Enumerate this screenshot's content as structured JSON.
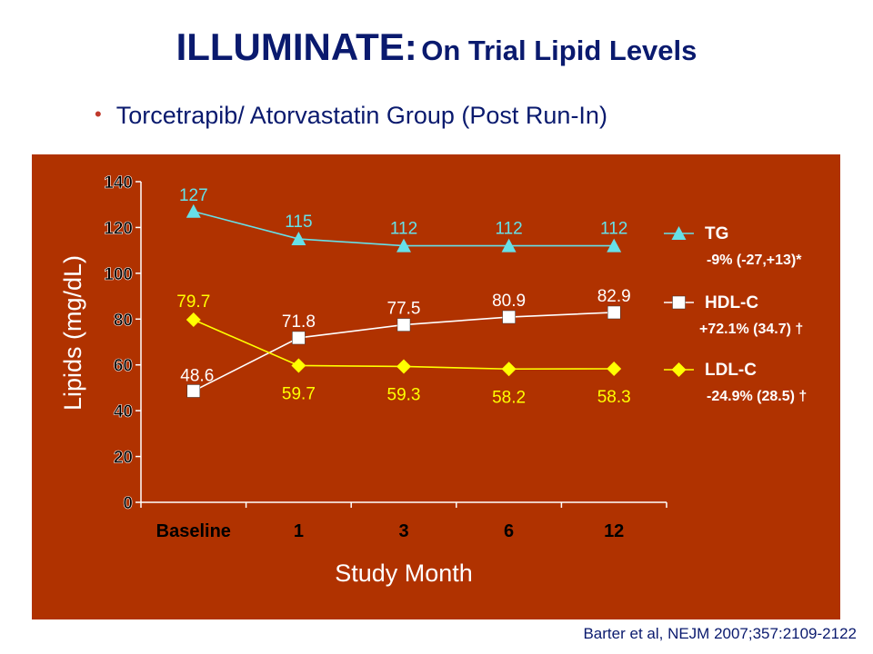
{
  "title": {
    "main": "ILLUMINATE:",
    "sub": "On Trial Lipid Levels"
  },
  "bullet": "Torcetrapib/ Atorvastatin Group (Post Run-In)",
  "citation": "Barter et al, NEJM 2007;357:2109-2122",
  "colors": {
    "panel": "#b03200",
    "tg": "#66e0e8",
    "hdl": "#ffffff",
    "ldl": "#ffff00",
    "title": "#0a1a6e"
  },
  "chart_data": {
    "type": "line",
    "xlabel": "Study Month",
    "ylabel": "Lipids (mg/dL)",
    "categories": [
      "Baseline",
      "1",
      "3",
      "6",
      "12"
    ],
    "ylim": [
      0,
      140
    ],
    "yticks": [
      0,
      20,
      40,
      60,
      80,
      100,
      120,
      140
    ],
    "grid": false,
    "legend_position": "right",
    "series": [
      {
        "name": "TG",
        "note": "-9% (-27,+13)*",
        "marker": "triangle",
        "color": "#66e0e8",
        "values": [
          127,
          115,
          112,
          112,
          112
        ],
        "labels": [
          "127",
          "115",
          "112",
          "112",
          "112"
        ]
      },
      {
        "name": "HDL-C",
        "note": "+72.1% (34.7) †",
        "marker": "square",
        "color": "#ffffff",
        "values": [
          48.6,
          71.8,
          77.5,
          80.9,
          82.9
        ],
        "labels": [
          "48.6",
          "71.8",
          "77.5",
          "80.9",
          "82.9"
        ]
      },
      {
        "name": "LDL-C",
        "note": "-24.9% (28.5) †",
        "marker": "diamond",
        "color": "#ffff00",
        "values": [
          79.7,
          59.7,
          59.3,
          58.2,
          58.3
        ],
        "labels": [
          "79.7",
          "59.7",
          "59.3",
          "58.2",
          "58.3"
        ]
      }
    ]
  }
}
